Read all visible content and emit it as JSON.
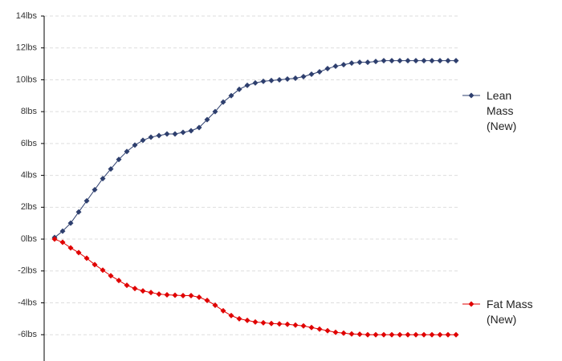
{
  "chart_data": {
    "type": "line",
    "categories": [
      null,
      null,
      null,
      null,
      null,
      null,
      null,
      null,
      null,
      null,
      null,
      null,
      null,
      null,
      null,
      null,
      null,
      null,
      null,
      null,
      null,
      null,
      null,
      null,
      null,
      null,
      null,
      null,
      null,
      null,
      null,
      null,
      null,
      null,
      null,
      null,
      null,
      null,
      null,
      null,
      null,
      null,
      null,
      null,
      null,
      null,
      null,
      null,
      null,
      null,
      null
    ],
    "series": [
      {
        "name": "Lean Mass (New)",
        "color": "#2e3f6e",
        "values": [
          0.1,
          0.5,
          1.0,
          1.7,
          2.4,
          3.1,
          3.8,
          4.4,
          5.0,
          5.5,
          5.9,
          6.2,
          6.4,
          6.5,
          6.6,
          6.6,
          6.7,
          6.8,
          7.0,
          7.5,
          8.0,
          8.6,
          9.0,
          9.4,
          9.65,
          9.8,
          9.9,
          9.95,
          10.0,
          10.05,
          10.1,
          10.2,
          10.35,
          10.5,
          10.7,
          10.85,
          10.95,
          11.05,
          11.1,
          11.1,
          11.15,
          11.2,
          11.2,
          11.2,
          11.2,
          11.2,
          11.2,
          11.2,
          11.2,
          11.2,
          11.2
        ]
      },
      {
        "name": "Fat Mass (New)",
        "color": "#e00000",
        "values": [
          0,
          -0.2,
          -0.55,
          -0.85,
          -1.2,
          -1.6,
          -1.95,
          -2.3,
          -2.6,
          -2.9,
          -3.1,
          -3.25,
          -3.35,
          -3.45,
          -3.5,
          -3.52,
          -3.55,
          -3.55,
          -3.65,
          -3.85,
          -4.15,
          -4.5,
          -4.8,
          -5.0,
          -5.1,
          -5.2,
          -5.25,
          -5.3,
          -5.32,
          -5.35,
          -5.4,
          -5.45,
          -5.55,
          -5.65,
          -5.75,
          -5.85,
          -5.9,
          -5.95,
          -5.97,
          -6.0,
          -6.0,
          -6.0,
          -6.0,
          -6.0,
          -6.0,
          -6.0,
          -6.0,
          -6.0,
          -6.0,
          -6.0,
          -6.0
        ]
      }
    ],
    "ylim": [
      -7.5,
      14
    ],
    "yticks": [
      {
        "value": -6,
        "label": "-6lbs"
      },
      {
        "value": -4,
        "label": "-4lbs"
      },
      {
        "value": -2,
        "label": "-2lbs"
      },
      {
        "value": 0,
        "label": "0lbs"
      },
      {
        "value": 2,
        "label": "2lbs"
      },
      {
        "value": 4,
        "label": "4lbs"
      },
      {
        "value": 6,
        "label": "6lbs"
      },
      {
        "value": 8,
        "label": "8lbs"
      },
      {
        "value": 10,
        "label": "10lbs"
      },
      {
        "value": 12,
        "label": "12lbs"
      },
      {
        "value": 14,
        "label": "14lbs"
      }
    ],
    "grid": true,
    "legend": "right"
  }
}
